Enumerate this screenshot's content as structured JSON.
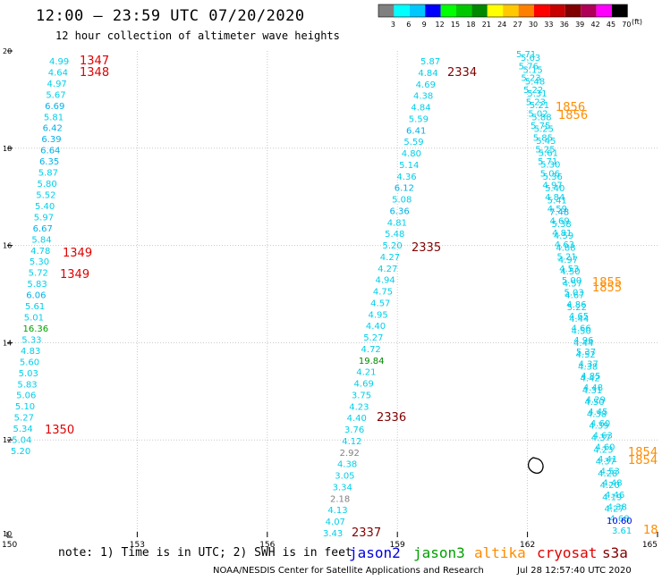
{
  "title": "12:00 – 23:59 UTC 07/20/2020",
  "subtitle": "12 hour collection of altimeter wave heights",
  "legend": {
    "colors": [
      "#808080",
      "#00ffff",
      "#00c8ff",
      "#0000ff",
      "#00ff00",
      "#00c800",
      "#008800",
      "#ffff00",
      "#ffc800",
      "#ff8000",
      "#ff0000",
      "#c80000",
      "#800000",
      "#b00058",
      "#ff00ff",
      "#000000"
    ],
    "labels": [
      "3",
      "6",
      "9",
      "12",
      "15",
      "18",
      "21",
      "24",
      "27",
      "30",
      "33",
      "36",
      "39",
      "42",
      "45",
      "70"
    ],
    "units": "(ft)"
  },
  "axes": {
    "x_ticks": [
      "150",
      "153",
      "156",
      "159",
      "162",
      "165"
    ],
    "y_ticks": [
      "20",
      "18",
      "16",
      "14",
      "12",
      "10"
    ]
  },
  "tracks": {
    "left": [
      "4.99",
      "4.64",
      "4.97",
      "5.67",
      "6.69",
      "5.81",
      "6.42",
      "6.39",
      "6.64",
      "6.35",
      "5.87",
      "5.80",
      "5.52",
      "5.40",
      "5.97",
      "6.67",
      "5.84",
      "4.78",
      "5.30",
      "5.72",
      "5.83",
      "6.06",
      "5.61",
      "5.01",
      "16.36",
      "5.33",
      "4.83",
      "5.60",
      "5.03",
      "5.83",
      "5.06",
      "5.10",
      "5.27",
      "5.34",
      "5.04",
      "5.20"
    ],
    "middle": [
      "5.87",
      "4.84",
      "4.69",
      "4.38",
      "4.84",
      "5.59",
      "6.41",
      "5.59",
      "4.80",
      "5.14",
      "4.36",
      "6.12",
      "5.08",
      "6.36",
      "4.81",
      "5.48",
      "5.20",
      "4.27",
      "4.27",
      "4.94",
      "4.75",
      "4.57",
      "4.95",
      "4.40",
      "5.27",
      "4.72",
      "19.84",
      "4.21",
      "4.69",
      "3.75",
      "4.23",
      "4.40",
      "3.76",
      "4.12",
      "2.92",
      "4.38",
      "3.05",
      "3.34",
      "2.18",
      "4.13",
      "4.07",
      "3.43"
    ],
    "right_a": [
      "5.71",
      "5.76",
      "5.23",
      "5.22",
      "5.23",
      "5.02",
      "5.75",
      "5.85",
      "5.25",
      "5.71",
      "5.06",
      "4.97",
      "4.84",
      "4.59",
      "4.69",
      "4.81",
      "4.63",
      "5.21",
      "4.53",
      "5.00",
      "5.03",
      "4.86",
      "4.65",
      "4.66",
      "4.96",
      "5.37",
      "4.37",
      "4.85",
      "4.48",
      "4.29",
      "4.45",
      "4.60",
      "4.63",
      "4.60",
      "4.41",
      "4.53",
      "4.48",
      "4.46",
      "4.38",
      "4.68",
      "3.61"
    ],
    "right_b": [
      "5.63",
      "5.15",
      "5.48",
      "5.31",
      "5.21",
      "5.88",
      "5.25",
      "5.45",
      "5.61",
      "5.30",
      "5.36",
      "5.40",
      "5.41",
      "7.48",
      "5.38",
      "4.59",
      "4.88",
      "4.97",
      "4.50",
      "4.57",
      "4.67",
      "5.22",
      "4.44",
      "4.50",
      "4.44",
      "4.52",
      "4.38",
      "4.42",
      "4.31",
      "4.50",
      "4.38",
      "4.39",
      "4.37",
      "4.23",
      "4.37",
      "4.28",
      "4.20",
      "4.19",
      "4.27",
      "10.60"
    ]
  },
  "pass_labels": [
    {
      "text": "1347",
      "color": "#e00000"
    },
    {
      "text": "1348",
      "color": "#e00000"
    },
    {
      "text": "1349",
      "color": "#e00000"
    },
    {
      "text": "1349",
      "color": "#e00000"
    },
    {
      "text": "1350",
      "color": "#e00000"
    },
    {
      "text": "2334",
      "color": "#800000"
    },
    {
      "text": "2335",
      "color": "#800000"
    },
    {
      "text": "2336",
      "color": "#800000"
    },
    {
      "text": "2337",
      "color": "#800000"
    },
    {
      "text": "1856",
      "color": "#ff8c00"
    },
    {
      "text": "1856",
      "color": "#ff8c00"
    },
    {
      "text": "1855",
      "color": "#ff8c00"
    },
    {
      "text": "1855",
      "color": "#ff8c00"
    },
    {
      "text": "1854",
      "color": "#ff8c00"
    },
    {
      "text": "1854",
      "color": "#ff8c00"
    },
    {
      "text": "18",
      "color": "#ff8c00"
    }
  ],
  "footer": {
    "note": "note:  1) Time is in UTC;  2) SWH is in feet",
    "missions": [
      {
        "name": "jason2",
        "color": "#0000e0"
      },
      {
        "name": "jason3",
        "color": "#00a000"
      },
      {
        "name": "altika",
        "color": "#ff8c00"
      },
      {
        "name": "cryosat",
        "color": "#e00000"
      },
      {
        "name": "s3a",
        "color": "#800000"
      }
    ],
    "credit": "NOAA/NESDIS Center for Satellite Applications and Research",
    "date": "Jul 28 12:57:40 UTC 2020"
  }
}
